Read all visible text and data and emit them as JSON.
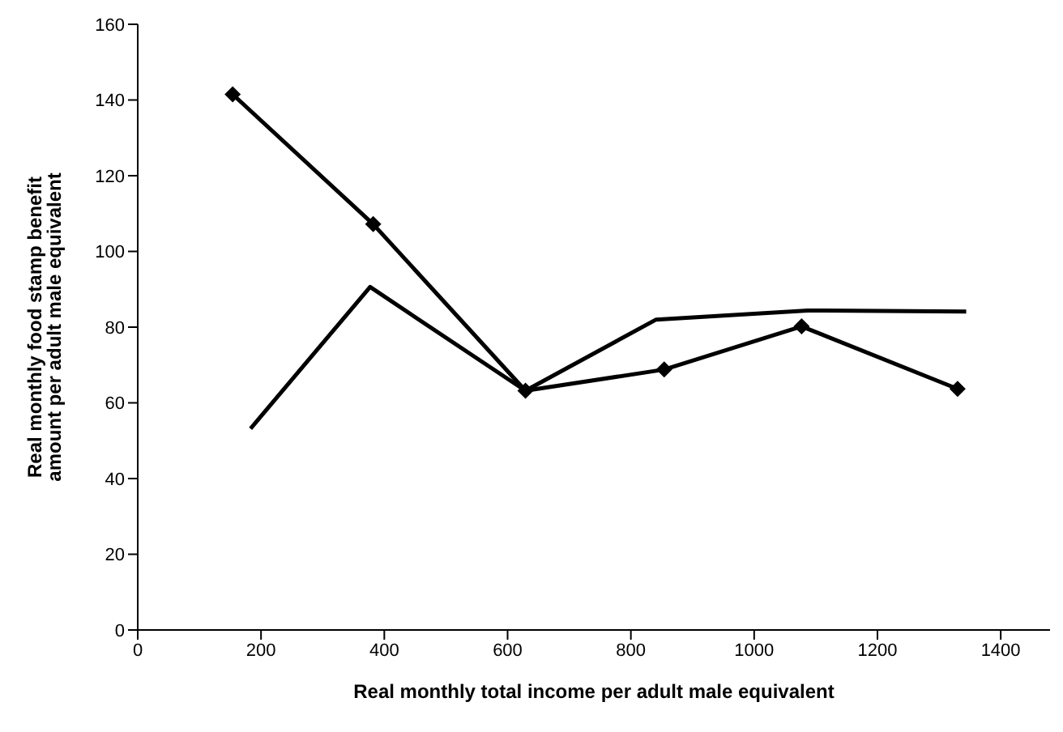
{
  "chart_data": {
    "type": "line",
    "xlabel": "Real monthly total income per adult male equivalent",
    "ylabel": "Real monthly food stamp benefit amount per adult male equivalent",
    "xlim": [
      0,
      1480
    ],
    "xticks": [
      0,
      200,
      400,
      600,
      800,
      1000,
      1200,
      1400
    ],
    "ylim": [
      0,
      160
    ],
    "yticks": [
      0,
      20,
      40,
      60,
      80,
      100,
      120,
      140,
      160
    ],
    "grid": false,
    "legend": false,
    "line_style": "solid",
    "series": [
      {
        "color": "#000000",
        "marker": "diamond",
        "x": [
          154,
          382,
          629,
          854,
          1077,
          1330
        ],
        "values": [
          141.5,
          107.2,
          63.2,
          68.8,
          80.2,
          63.7
        ]
      },
      {
        "color": "#000000",
        "marker": "none",
        "x": [
          183,
          377,
          629,
          841,
          1087,
          1344
        ],
        "values": [
          53.2,
          90.6,
          63.2,
          82,
          84.4,
          84.1
        ]
      }
    ]
  }
}
